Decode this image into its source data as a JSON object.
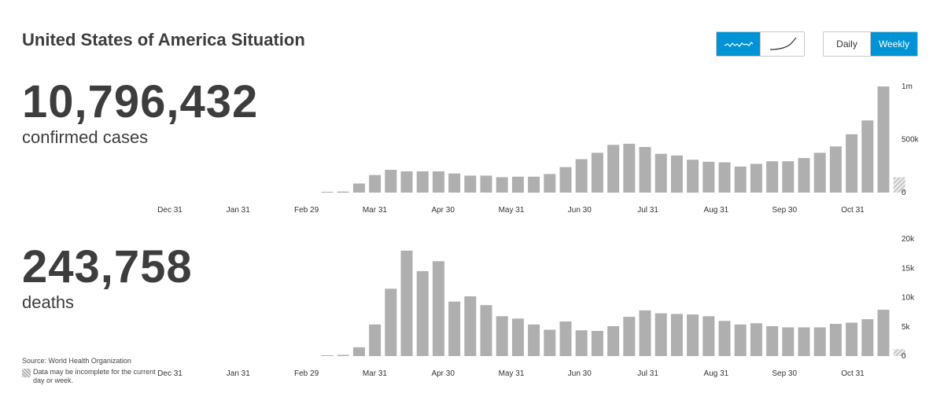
{
  "header": {
    "title": "United States of America Situation"
  },
  "controls": {
    "shape_options": [
      {
        "icon": "wavy-line-icon",
        "active": true
      },
      {
        "icon": "cumulative-curve-icon",
        "active": false
      }
    ],
    "period_options": [
      {
        "label": "Daily",
        "active": false
      },
      {
        "label": "Weekly",
        "active": true
      }
    ]
  },
  "summary": {
    "cases_value": "10,796,432",
    "cases_label": "confirmed cases",
    "deaths_value": "243,758",
    "deaths_label": "deaths"
  },
  "footer": {
    "source": "Source: World Health Organization",
    "note": "Data may be incomplete for the current day or week."
  },
  "colors": {
    "accent": "#0093d5",
    "bar": "#b0afb0",
    "text": "#3d3d3d"
  },
  "chart_data": [
    {
      "type": "bar",
      "name": "confirmed cases",
      "x_tick_labels": [
        "Dec 31",
        "Jan 31",
        "Feb 29",
        "Mar 31",
        "Apr 30",
        "May 31",
        "Jun 30",
        "Jul 31",
        "Aug 31",
        "Sep 30",
        "Oct 31"
      ],
      "y_ticks": [
        {
          "value": 0,
          "label": "0"
        },
        {
          "value": 500000,
          "label": "500k"
        },
        {
          "value": 1000000,
          "label": "1m"
        }
      ],
      "ylim": [
        0,
        1000000
      ],
      "values": [
        0,
        0,
        0,
        0,
        0,
        0,
        0,
        0,
        0,
        0,
        0,
        6000,
        10000,
        85000,
        165000,
        215000,
        200000,
        200000,
        200000,
        180000,
        160000,
        160000,
        145000,
        150000,
        150000,
        175000,
        240000,
        315000,
        375000,
        450000,
        460000,
        430000,
        365000,
        350000,
        310000,
        290000,
        285000,
        245000,
        270000,
        295000,
        295000,
        325000,
        375000,
        435000,
        550000,
        680000,
        1000000,
        145000
      ],
      "incomplete_last": true,
      "grid": false,
      "legend": "none"
    },
    {
      "type": "bar",
      "name": "deaths",
      "x_tick_labels": [
        "Dec 31",
        "Jan 31",
        "Feb 29",
        "Mar 31",
        "Apr 30",
        "May 31",
        "Jun 30",
        "Jul 31",
        "Aug 31",
        "Sep 30",
        "Oct 31"
      ],
      "y_ticks": [
        {
          "value": 0,
          "label": "0"
        },
        {
          "value": 5000,
          "label": "5k"
        },
        {
          "value": 10000,
          "label": "10k"
        },
        {
          "value": 15000,
          "label": "15k"
        },
        {
          "value": 20000,
          "label": "20k"
        }
      ],
      "ylim": [
        0,
        20000
      ],
      "values": [
        0,
        0,
        0,
        0,
        0,
        0,
        0,
        0,
        0,
        0,
        0,
        50,
        200,
        1500,
        5400,
        11500,
        18000,
        14500,
        16200,
        9300,
        10200,
        8700,
        6800,
        6400,
        5400,
        4500,
        5900,
        4400,
        4300,
        5100,
        6700,
        7800,
        7300,
        7200,
        7100,
        6800,
        6000,
        5400,
        5600,
        5100,
        4900,
        4900,
        4900,
        5500,
        5700,
        6300,
        7900,
        1200
      ],
      "incomplete_last": true,
      "grid": false,
      "legend": "none"
    }
  ]
}
